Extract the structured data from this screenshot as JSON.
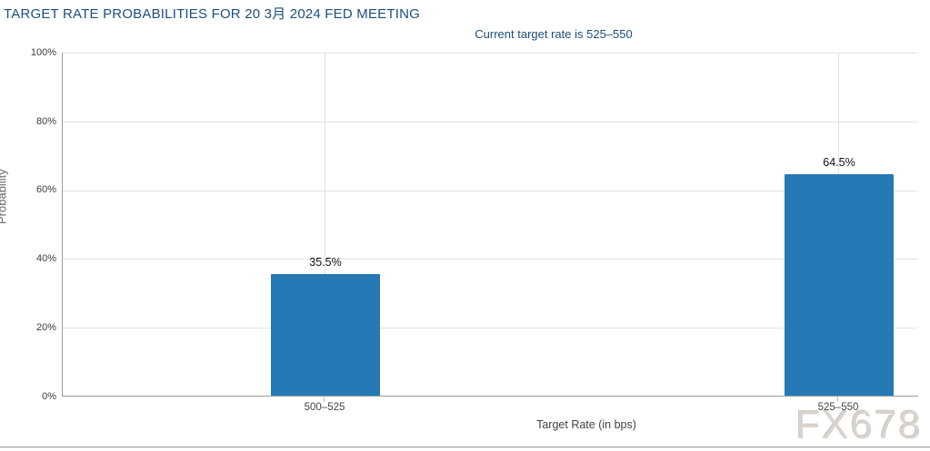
{
  "chart_data": {
    "type": "bar",
    "title": "TARGET RATE PROBABILITIES FOR 20 3月 2024 FED MEETING",
    "subtitle": "Current target rate is 525–550",
    "categories": [
      "500–525",
      "525–550"
    ],
    "values": [
      35.5,
      64.5
    ],
    "value_labels": [
      "35.5%",
      "64.5%"
    ],
    "series": [
      {
        "name": "Probability",
        "values": [
          35.5,
          64.5
        ]
      }
    ],
    "xlabel": "Target Rate (in bps)",
    "ylabel": "Probability",
    "ylim": [
      0,
      100
    ],
    "ytick_labels": [
      "100%",
      "80%",
      "60%",
      "40%",
      "20%",
      "0%"
    ],
    "grid": true,
    "legend": "none",
    "bar_color": "#2579b5",
    "title_color": "#1c4f7c",
    "gridline_color": "#e2e2e2",
    "axis_line_color": "#9a9a9a"
  },
  "watermark": {
    "text": "FX678"
  }
}
